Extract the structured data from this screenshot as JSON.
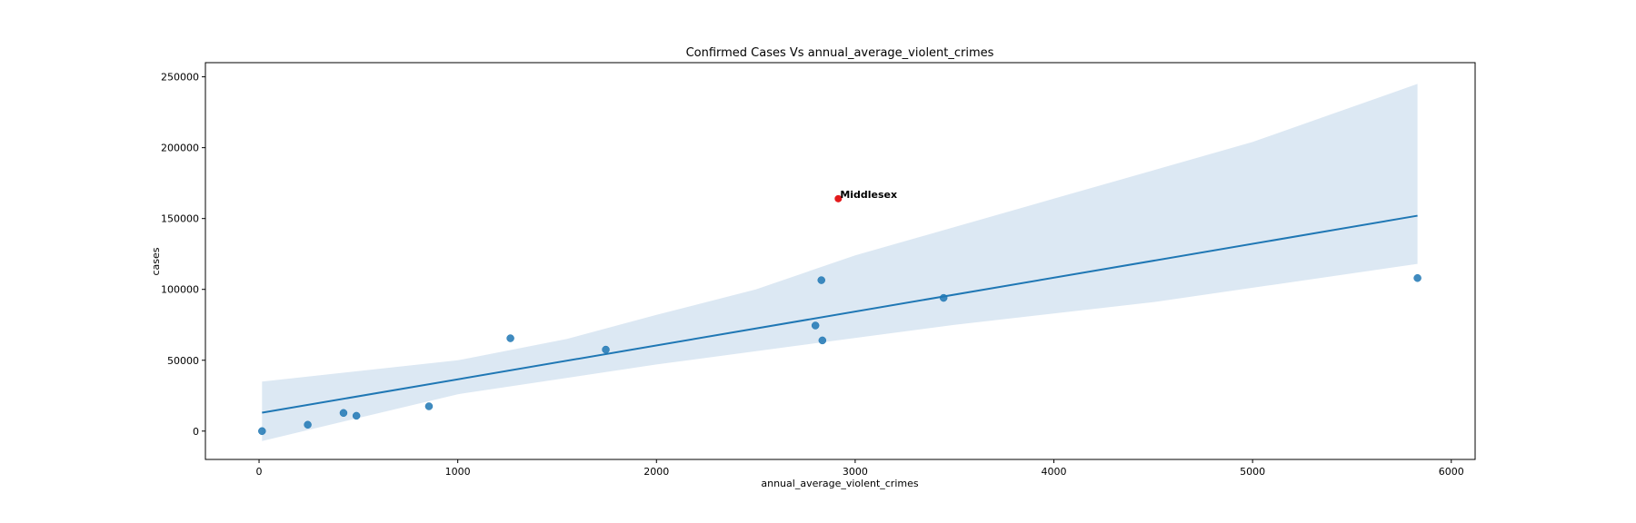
{
  "chart_data": {
    "type": "scatter",
    "title": "Confirmed Cases Vs annual_average_violent_crimes",
    "xlabel": "annual_average_violent_crimes",
    "ylabel": "cases",
    "xlim": [
      -270,
      6120
    ],
    "ylim": [
      -20000,
      260000
    ],
    "xticks": [
      0,
      1000,
      2000,
      3000,
      4000,
      5000,
      6000
    ],
    "yticks": [
      0,
      50000,
      100000,
      150000,
      200000,
      250000
    ],
    "grid": false,
    "series": [
      {
        "color": "#1f77b4",
        "points": [
          {
            "x": 15,
            "y": 0
          },
          {
            "x": 245,
            "y": 4500
          },
          {
            "x": 425,
            "y": 12800
          },
          {
            "x": 490,
            "y": 10800
          },
          {
            "x": 855,
            "y": 17500
          },
          {
            "x": 1265,
            "y": 65500
          },
          {
            "x": 1745,
            "y": 57500
          },
          {
            "x": 2800,
            "y": 74500
          },
          {
            "x": 2830,
            "y": 106500
          },
          {
            "x": 2835,
            "y": 64000
          },
          {
            "x": 3445,
            "y": 94000
          },
          {
            "x": 5830,
            "y": 108000
          }
        ]
      }
    ],
    "highlight": {
      "x": 2915,
      "y": 164000,
      "label": "Middlesex",
      "color": "#e31a1c"
    },
    "regression": {
      "color": "#1f77b4",
      "ci_color": "#dce8f3",
      "line": [
        [
          15,
          13000
        ],
        [
          5830,
          152000
        ]
      ],
      "ci_upper": [
        [
          15,
          35000
        ],
        [
          1000,
          50000
        ],
        [
          1550,
          65000
        ],
        [
          2000,
          82000
        ],
        [
          2500,
          100000
        ],
        [
          3000,
          124000
        ],
        [
          4000,
          164000
        ],
        [
          5000,
          204000
        ],
        [
          5830,
          245000
        ]
      ],
      "ci_lower": [
        [
          15,
          -7000
        ],
        [
          1000,
          26000
        ],
        [
          2000,
          47000
        ],
        [
          2800,
          62000
        ],
        [
          3500,
          75000
        ],
        [
          4500,
          91000
        ],
        [
          5830,
          118000
        ]
      ]
    }
  }
}
